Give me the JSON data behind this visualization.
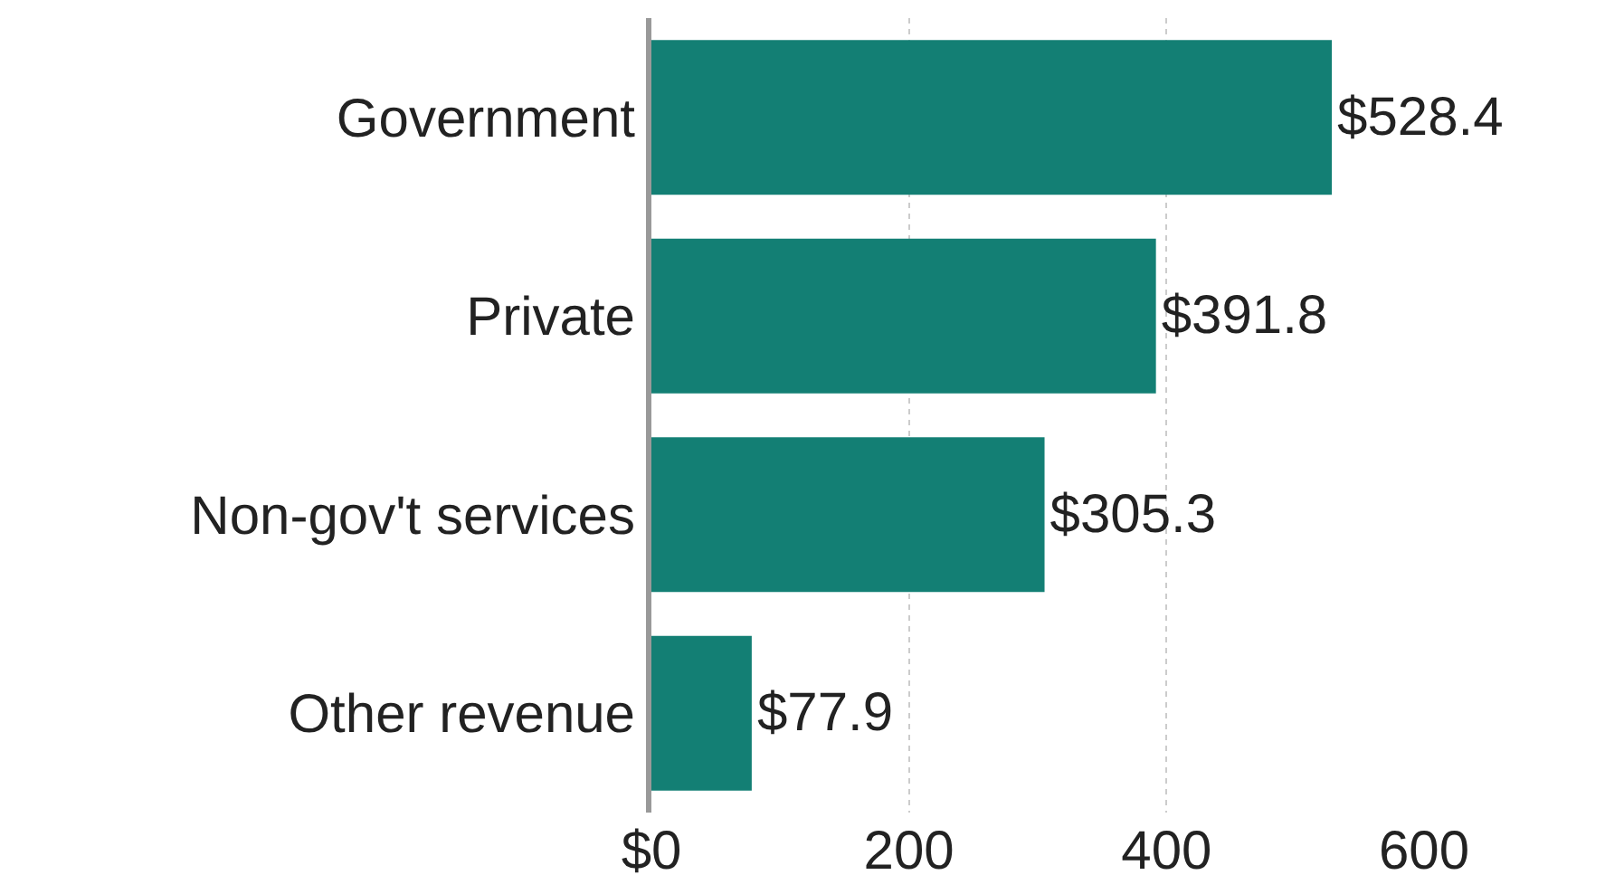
{
  "chart_data": {
    "type": "bar",
    "orientation": "horizontal",
    "categories": [
      "Government",
      "Private",
      "Non-gov't services",
      "Other revenue"
    ],
    "values": [
      528.4,
      391.8,
      305.3,
      77.9
    ],
    "value_labels": [
      "$528.4",
      "$391.8",
      "$305.3",
      "$77.9"
    ],
    "color": "#137f74",
    "xlim": [
      0,
      600
    ],
    "xticks": [
      {
        "value": 0,
        "label": "$0"
      },
      200,
      400,
      600
    ],
    "grid": "x"
  }
}
